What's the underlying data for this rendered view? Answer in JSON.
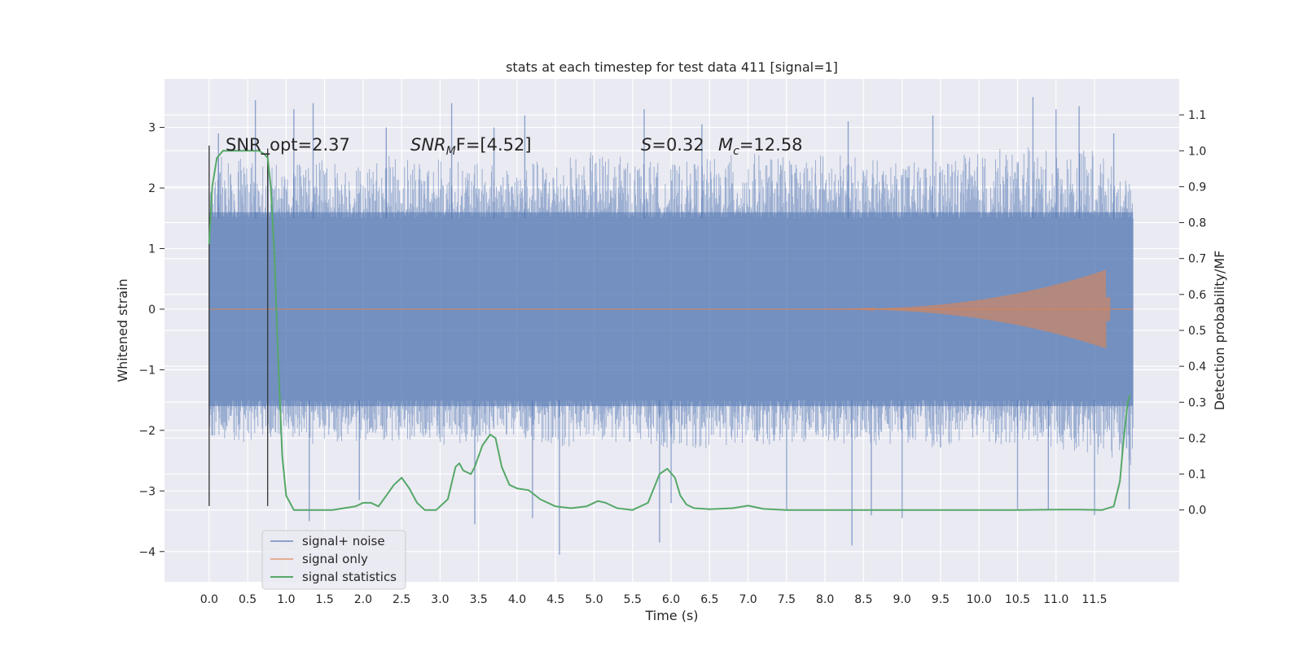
{
  "chart_data": {
    "type": "line",
    "title": "stats at each timestep for test data 411 [signal=1]",
    "xlabel": "Time (s)",
    "ylabel": "Whitened strain",
    "y2label": "Detection probability/MF",
    "xlim": [
      -0.58,
      12.6
    ],
    "ylim": [
      -4.5,
      3.8
    ],
    "y2lim": [
      -0.2,
      1.2
    ],
    "x_ticks": [
      0.0,
      0.5,
      1.0,
      1.5,
      2.0,
      2.5,
      3.0,
      3.5,
      4.0,
      4.5,
      5.0,
      5.5,
      6.0,
      6.5,
      7.0,
      7.5,
      8.0,
      8.5,
      9.0,
      9.5,
      10.0,
      10.5,
      11.0,
      11.5
    ],
    "x_tick_labels": [
      "0.0",
      "0.5",
      "1.0",
      "1.5",
      "2.0",
      "2.5",
      "3.0",
      "3.5",
      "4.0",
      "4.5",
      "5.0",
      "5.5",
      "6.0",
      "6.5",
      "7.0",
      "7.5",
      "8.0",
      "8.5",
      "9.0",
      "9.5",
      "10.0",
      "10.5",
      "11.0",
      "11.5"
    ],
    "y_ticks": [
      3,
      2,
      1,
      0,
      -1,
      -2,
      -3,
      -4
    ],
    "y_tick_labels": [
      "3",
      "2",
      "1",
      "0",
      "−1",
      "−2",
      "−3",
      "−4"
    ],
    "y2_ticks": [
      1.1,
      1.0,
      0.9,
      0.8,
      0.7,
      0.6,
      0.5,
      0.4,
      0.3,
      0.2,
      0.1,
      0.0
    ],
    "y2_tick_labels": [
      "1.1",
      "1.0",
      "0.9",
      "0.8",
      "0.7",
      "0.6",
      "0.5",
      "0.4",
      "0.3",
      "0.2",
      "0.1",
      "0.0"
    ],
    "grid": true,
    "legend_position": "lower-left",
    "annotations": {
      "snr_opt": "SNR_opt=2.37",
      "snr_mf_main": "SNR",
      "snr_mf_sub": "M",
      "snr_mf_rest": "F=[4.52]",
      "s_symbol": "S",
      "s_value": "=0.32",
      "mc_symbol": "M",
      "mc_sub": "c",
      "mc_value": "=12.58"
    },
    "vertical_markers": [
      {
        "x": 0.0,
        "y_from": -3.25,
        "y_to": 2.7
      },
      {
        "x": 0.76,
        "y_from": -3.25,
        "y_to": 2.65
      }
    ],
    "series": [
      {
        "name": "signal+ noise",
        "color": "#4c72b0",
        "duration": 12.0,
        "core_band": [
          -1.6,
          1.6
        ],
        "envelope_top": [
          2.6,
          2.5,
          2.4,
          2.5,
          2.4,
          2.6,
          2.5,
          2.4,
          2.4,
          2.5,
          2.6,
          2.5,
          2.4,
          2.5,
          2.6,
          2.5,
          2.6,
          2.5,
          2.4,
          2.5,
          2.6,
          2.7,
          2.6,
          2.7,
          2.0
        ],
        "envelope_bottom": [
          -2.1,
          -2.2,
          -2.1,
          -2.3,
          -2.2,
          -2.2,
          -2.3,
          -2.2,
          -2.1,
          -2.3,
          -2.2,
          -2.2,
          -2.3,
          -2.3,
          -2.2,
          -2.3,
          -2.2,
          -2.3,
          -2.2,
          -2.3,
          -2.3,
          -2.2,
          -2.3,
          -2.4,
          -2.6
        ],
        "spikes_up": [
          [
            0.12,
            2.9
          ],
          [
            0.6,
            3.45
          ],
          [
            1.1,
            3.3
          ],
          [
            1.35,
            3.4
          ],
          [
            2.3,
            3.0
          ],
          [
            3.15,
            3.4
          ],
          [
            3.7,
            3.0
          ],
          [
            4.1,
            3.2
          ],
          [
            5.65,
            3.3
          ],
          [
            6.4,
            3.05
          ],
          [
            8.3,
            3.1
          ],
          [
            9.4,
            3.2
          ],
          [
            10.7,
            3.5
          ],
          [
            11.0,
            3.3
          ],
          [
            11.3,
            3.35
          ],
          [
            11.75,
            2.9
          ]
        ],
        "spikes_down": [
          [
            1.3,
            -3.5
          ],
          [
            1.95,
            -3.15
          ],
          [
            3.45,
            -3.55
          ],
          [
            4.2,
            -3.45
          ],
          [
            4.55,
            -4.05
          ],
          [
            5.85,
            -3.85
          ],
          [
            6.0,
            -3.2
          ],
          [
            7.5,
            -3.3
          ],
          [
            8.35,
            -3.9
          ],
          [
            8.6,
            -3.4
          ],
          [
            9.0,
            -3.45
          ],
          [
            10.5,
            -3.3
          ],
          [
            10.9,
            -3.3
          ],
          [
            11.5,
            -3.4
          ],
          [
            11.95,
            -3.3
          ]
        ]
      },
      {
        "name": "signal only",
        "color": "#dd8452",
        "duration": 12.0,
        "chirp_peak_x": 11.65,
        "chirp_amplitude": 0.65
      },
      {
        "name": "signal statistics",
        "color": "#55a868",
        "axis": "right",
        "x": [
          0.0,
          0.04,
          0.1,
          0.18,
          0.3,
          0.5,
          0.65,
          0.72,
          0.76,
          0.8,
          0.85,
          0.9,
          0.95,
          1.0,
          1.1,
          1.3,
          1.6,
          1.9,
          2.0,
          2.1,
          2.2,
          2.3,
          2.4,
          2.5,
          2.6,
          2.7,
          2.8,
          2.95,
          3.1,
          3.2,
          3.25,
          3.3,
          3.4,
          3.45,
          3.55,
          3.65,
          3.72,
          3.8,
          3.9,
          4.0,
          4.15,
          4.3,
          4.5,
          4.7,
          4.9,
          5.05,
          5.15,
          5.3,
          5.5,
          5.7,
          5.85,
          5.95,
          6.05,
          6.12,
          6.2,
          6.3,
          6.5,
          6.8,
          7.0,
          7.2,
          7.5,
          8.0,
          8.5,
          9.0,
          9.5,
          10.0,
          10.5,
          11.0,
          11.3,
          11.6,
          11.75,
          11.83,
          11.88,
          11.93,
          11.96
        ],
        "y": [
          0.74,
          0.9,
          0.98,
          1.0,
          1.0,
          1.0,
          1.0,
          0.99,
          0.98,
          0.9,
          0.7,
          0.4,
          0.15,
          0.04,
          0.0,
          0.0,
          0.0,
          0.01,
          0.02,
          0.02,
          0.01,
          0.04,
          0.07,
          0.09,
          0.06,
          0.02,
          0.0,
          0.0,
          0.03,
          0.12,
          0.13,
          0.11,
          0.1,
          0.12,
          0.18,
          0.21,
          0.2,
          0.12,
          0.07,
          0.06,
          0.055,
          0.03,
          0.01,
          0.005,
          0.01,
          0.025,
          0.02,
          0.005,
          0.0,
          0.02,
          0.1,
          0.115,
          0.09,
          0.04,
          0.015,
          0.005,
          0.002,
          0.005,
          0.012,
          0.003,
          0.0,
          0.0,
          0.0,
          0.0,
          0.0,
          0.0,
          0.0,
          0.001,
          0.001,
          0.0,
          0.01,
          0.08,
          0.2,
          0.3,
          0.32
        ]
      }
    ]
  }
}
